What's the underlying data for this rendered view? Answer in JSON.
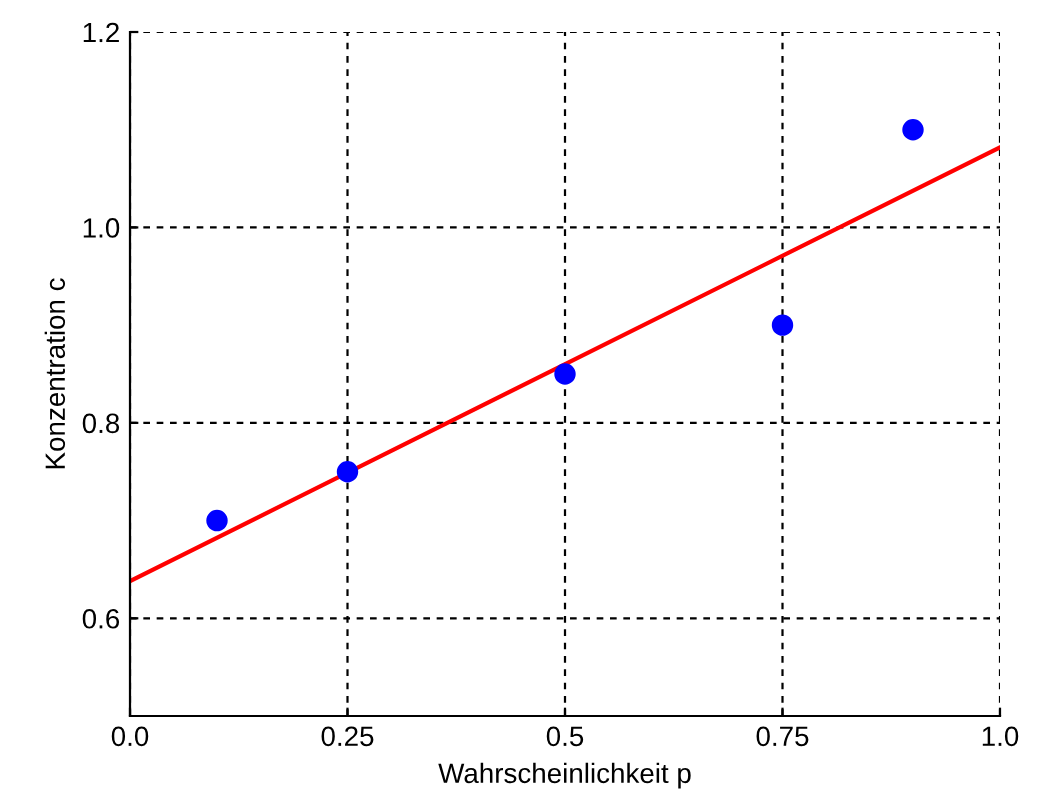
{
  "chart_data": {
    "type": "scatter",
    "xlabel": "Wahrscheinlichkeit p",
    "ylabel": "Konzentration c",
    "series": [
      {
        "color": "#0000ff",
        "x": [
          0.1,
          0.25,
          0.5,
          0.75,
          0.9
        ],
        "values": [
          0.7,
          0.75,
          0.85,
          0.9,
          1.1
        ],
        "marker": "circle"
      },
      {
        "type": "line",
        "color": "#ff0000",
        "x": [
          0.0,
          1.0
        ],
        "values": [
          0.638,
          1.082
        ],
        "line_style": "solid"
      }
    ],
    "xlim": [
      0.0,
      1.0
    ],
    "ylim": [
      0.5,
      1.2
    ],
    "xticks": [
      {
        "value": 0.0,
        "label": "0.0"
      },
      0.25,
      0.5,
      0.75,
      {
        "value": 1.0,
        "label": "1.0"
      }
    ],
    "yticks": [
      0.6,
      0.8,
      {
        "value": 1.0,
        "label": "1.0"
      },
      1.2
    ],
    "grid": true
  }
}
